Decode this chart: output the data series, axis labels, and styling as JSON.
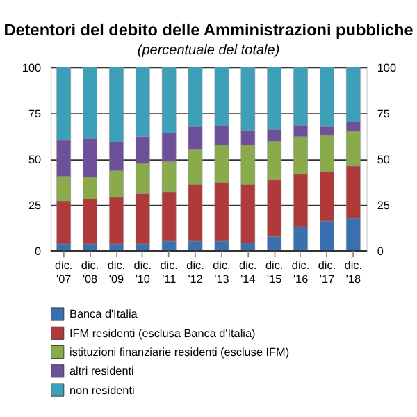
{
  "chart_data": {
    "type": "bar",
    "stacked": true,
    "title": "Detentori del debito delle Amministrazioni pubbliche",
    "subtitle": "(percentuale del totale)",
    "categories": [
      "dic. '07",
      "dic. '08",
      "dic. '09",
      "dic. '10",
      "dic. '11",
      "dic. '12",
      "dic. '13",
      "dic. '14",
      "dic. '15",
      "dic. '16",
      "dic. '17",
      "dic. '18"
    ],
    "series": [
      {
        "name": "Banca d'Italia",
        "color": "#3a6fb0",
        "values": [
          3.5,
          3.5,
          3.5,
          3.5,
          5,
          5,
          5,
          4,
          7.5,
          13,
          16,
          17.5
        ]
      },
      {
        "name": "IFM residenti (esclusa Banca d'Italia)",
        "color": "#b03a3a",
        "values": [
          23.5,
          24.5,
          25.5,
          27.5,
          27,
          31,
          32,
          32,
          31,
          28.5,
          27,
          28.5
        ]
      },
      {
        "name": "istituzioni finanziarie residenti (escluse IFM)",
        "color": "#8aab4a",
        "values": [
          13.5,
          12,
          14.5,
          16.5,
          16.5,
          19,
          20.5,
          21.5,
          21,
          20.5,
          20,
          19
        ]
      },
      {
        "name": "altri residenti",
        "color": "#6e4f9a",
        "values": [
          19.5,
          21,
          15.5,
          14.5,
          15.5,
          12.5,
          10.5,
          8,
          6.5,
          6,
          4.5,
          5
        ]
      },
      {
        "name": "non residenti",
        "color": "#3ea0b8",
        "values": [
          40,
          39,
          41,
          38,
          36,
          32.5,
          32,
          34.5,
          34,
          32,
          32.5,
          30
        ]
      }
    ],
    "ylim": [
      0,
      100
    ],
    "yticks": [
      0,
      25,
      50,
      75,
      100
    ],
    "y2lim": [
      0,
      100
    ],
    "y2ticks": [
      0,
      25,
      50,
      75,
      100
    ],
    "grid": "y",
    "legend": "bottom"
  }
}
